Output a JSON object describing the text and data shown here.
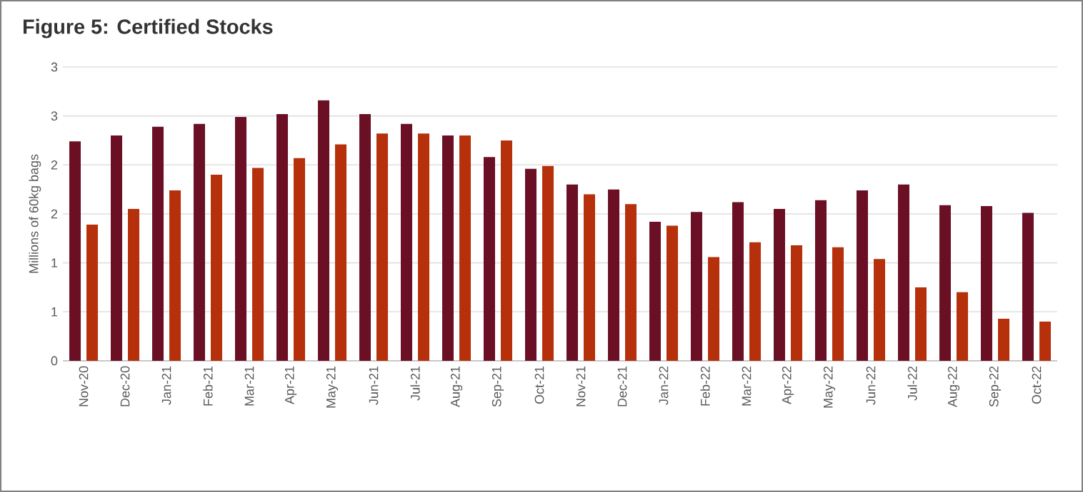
{
  "chart_data": {
    "type": "bar",
    "title": "Figure 5: Certified Stocks",
    "ylabel": "Millions of 60kg bags",
    "categories": [
      "Nov-20",
      "Dec-20",
      "Jan-21",
      "Feb-21",
      "Mar-21",
      "Apr-21",
      "May-21",
      "Jun-21",
      "Jul-21",
      "Aug-21",
      "Sep-21",
      "Oct-21",
      "Nov-21",
      "Dec-21",
      "Jan-22",
      "Feb-22",
      "Mar-22",
      "Apr-22",
      "May-22",
      "Jun-22",
      "Jul-22",
      "Aug-22",
      "Sep-22",
      "Oct-22"
    ],
    "series": [
      {
        "color": "#6b0f24",
        "values": [
          2.24,
          2.3,
          2.39,
          2.42,
          2.49,
          2.52,
          2.66,
          2.52,
          2.42,
          2.3,
          2.08,
          1.96,
          1.8,
          1.75,
          1.42,
          1.52,
          1.62,
          1.55,
          1.64,
          1.74,
          1.8,
          1.59,
          1.58,
          1.51
        ]
      },
      {
        "color": "#b5300b",
        "values": [
          1.39,
          1.55,
          1.74,
          1.9,
          1.97,
          2.07,
          2.21,
          2.32,
          2.32,
          2.3,
          2.25,
          1.99,
          1.7,
          1.6,
          1.38,
          1.06,
          1.21,
          1.18,
          1.16,
          1.04,
          0.75,
          0.7,
          0.43,
          0.4
        ]
      }
    ],
    "ylim": [
      0,
      3
    ],
    "yticks": [
      0,
      {
        "value": 0.5,
        "label": "1"
      },
      1,
      {
        "value": 1.5,
        "label": "2"
      },
      2,
      {
        "value": 2.5,
        "label": "3"
      },
      3
    ],
    "grid": "y"
  }
}
